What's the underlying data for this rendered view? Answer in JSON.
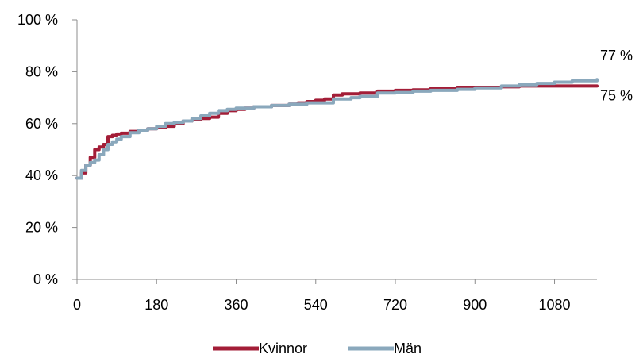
{
  "chart_data": {
    "type": "line",
    "title": "",
    "xlabel": "",
    "ylabel": "",
    "xlim": [
      0,
      1176
    ],
    "ylim": [
      0,
      100
    ],
    "x_ticks": [
      0,
      180,
      360,
      540,
      720,
      900,
      1080
    ],
    "x_tick_labels": [
      "0",
      "180",
      "360",
      "540",
      "720",
      "900",
      "1080"
    ],
    "y_ticks": [
      0,
      20,
      40,
      60,
      80,
      100
    ],
    "y_tick_labels": [
      "0 %",
      "20 %",
      "40 %",
      "60 %",
      "80 %",
      "100 %"
    ],
    "grid": false,
    "legend": "bottom",
    "series": [
      {
        "name": "Kvinnor",
        "color": "#a31d37",
        "end_label": "75 %",
        "points": [
          [
            0,
            39
          ],
          [
            10,
            41
          ],
          [
            20,
            44
          ],
          [
            30,
            47
          ],
          [
            40,
            50
          ],
          [
            50,
            51
          ],
          [
            60,
            52
          ],
          [
            70,
            55
          ],
          [
            80,
            55.5
          ],
          [
            90,
            56
          ],
          [
            100,
            56.3
          ],
          [
            120,
            57
          ],
          [
            140,
            57.5
          ],
          [
            160,
            58
          ],
          [
            180,
            58.5
          ],
          [
            200,
            59
          ],
          [
            220,
            60
          ],
          [
            240,
            61
          ],
          [
            260,
            61.5
          ],
          [
            280,
            62
          ],
          [
            300,
            62.5
          ],
          [
            320,
            64
          ],
          [
            340,
            65
          ],
          [
            360,
            65.5
          ],
          [
            380,
            66
          ],
          [
            400,
            66.5
          ],
          [
            440,
            67
          ],
          [
            480,
            67.5
          ],
          [
            500,
            68
          ],
          [
            520,
            68.5
          ],
          [
            540,
            69
          ],
          [
            560,
            69.5
          ],
          [
            580,
            71
          ],
          [
            600,
            71.5
          ],
          [
            640,
            71.8
          ],
          [
            680,
            72.5
          ],
          [
            720,
            72.8
          ],
          [
            760,
            73
          ],
          [
            800,
            73.5
          ],
          [
            860,
            74
          ],
          [
            900,
            74
          ],
          [
            960,
            74.2
          ],
          [
            1000,
            74.5
          ],
          [
            1080,
            74.5
          ],
          [
            1176,
            74.5
          ]
        ]
      },
      {
        "name": "Män",
        "color": "#8aa8bc",
        "end_label": "77 %",
        "points": [
          [
            0,
            39
          ],
          [
            10,
            42
          ],
          [
            20,
            44
          ],
          [
            30,
            45
          ],
          [
            40,
            46
          ],
          [
            50,
            48
          ],
          [
            60,
            50
          ],
          [
            70,
            52
          ],
          [
            80,
            53
          ],
          [
            90,
            54
          ],
          [
            100,
            55
          ],
          [
            120,
            56.5
          ],
          [
            140,
            57.5
          ],
          [
            160,
            58
          ],
          [
            180,
            59
          ],
          [
            200,
            60
          ],
          [
            220,
            60.5
          ],
          [
            240,
            61
          ],
          [
            260,
            62
          ],
          [
            280,
            63
          ],
          [
            300,
            64
          ],
          [
            320,
            65
          ],
          [
            340,
            65.5
          ],
          [
            360,
            66
          ],
          [
            400,
            66.5
          ],
          [
            440,
            67
          ],
          [
            480,
            67.5
          ],
          [
            520,
            68
          ],
          [
            560,
            68
          ],
          [
            580,
            69.5
          ],
          [
            620,
            70
          ],
          [
            640,
            70.5
          ],
          [
            680,
            71.8
          ],
          [
            720,
            72
          ],
          [
            760,
            72.5
          ],
          [
            800,
            72.8
          ],
          [
            860,
            73.2
          ],
          [
            900,
            73.8
          ],
          [
            960,
            74.5
          ],
          [
            1000,
            75
          ],
          [
            1040,
            75.5
          ],
          [
            1080,
            76
          ],
          [
            1120,
            76.5
          ],
          [
            1176,
            77
          ]
        ]
      }
    ]
  }
}
